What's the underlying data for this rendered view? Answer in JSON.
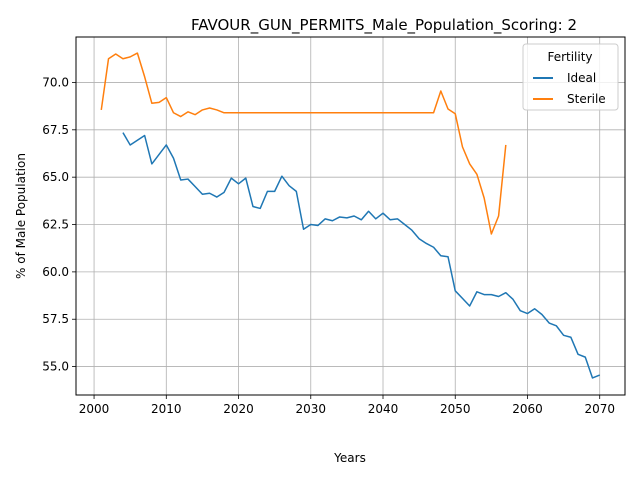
{
  "chart_data": {
    "type": "line",
    "title": "FAVOUR_GUN_PERMITS_Male_Population_Scoring: 2",
    "xlabel": "Years",
    "ylabel": "% of Male Population",
    "xlim": [
      1997.5,
      2073.5
    ],
    "ylim": [
      53.5,
      72.4
    ],
    "xticks": [
      2000,
      2010,
      2020,
      2030,
      2040,
      2050,
      2060,
      2070
    ],
    "yticks": [
      55.0,
      57.5,
      60.0,
      62.5,
      65.0,
      67.5,
      70.0
    ],
    "ytick_labels": [
      "55.0",
      "57.5",
      "60.0",
      "62.5",
      "65.0",
      "67.5",
      "70.0"
    ],
    "grid": true,
    "legend": {
      "title": "Fertility",
      "position": "top-right"
    },
    "series": [
      {
        "name": "Ideal",
        "color": "#1f77b4",
        "x": [
          2004,
          2005,
          2006,
          2007,
          2008,
          2009,
          2010,
          2011,
          2012,
          2013,
          2014,
          2015,
          2016,
          2017,
          2018,
          2019,
          2020,
          2021,
          2022,
          2023,
          2024,
          2025,
          2026,
          2027,
          2028,
          2029,
          2030,
          2031,
          2032,
          2033,
          2034,
          2035,
          2036,
          2037,
          2038,
          2039,
          2040,
          2041,
          2042,
          2043,
          2044,
          2045,
          2046,
          2047,
          2048,
          2049,
          2050,
          2051,
          2052,
          2053,
          2054,
          2055,
          2056,
          2057,
          2058,
          2059,
          2060,
          2061,
          2062,
          2063,
          2064,
          2065,
          2066,
          2067,
          2068,
          2069,
          2070
        ],
        "y": [
          67.35,
          66.7,
          66.95,
          67.2,
          65.7,
          66.2,
          66.7,
          66.0,
          64.85,
          64.9,
          64.5,
          64.1,
          64.15,
          63.95,
          64.2,
          64.95,
          64.65,
          64.95,
          63.45,
          63.35,
          64.25,
          64.25,
          65.05,
          64.55,
          64.25,
          62.25,
          62.5,
          62.45,
          62.8,
          62.7,
          62.9,
          62.85,
          62.95,
          62.75,
          63.2,
          62.8,
          63.1,
          62.75,
          62.8,
          62.5,
          62.2,
          61.75,
          61.5,
          61.3,
          60.85,
          60.8,
          59.0,
          58.6,
          58.2,
          58.95,
          58.8,
          58.8,
          58.7,
          58.9,
          58.55,
          57.95,
          57.8,
          58.05,
          57.75,
          57.3,
          57.15,
          56.65,
          56.55,
          55.65,
          55.5,
          54.4,
          54.55
        ]
      },
      {
        "name": "Sterile",
        "color": "#ff7f0e",
        "x": [
          2001,
          2002,
          2003,
          2004,
          2005,
          2006,
          2007,
          2008,
          2009,
          2010,
          2011,
          2012,
          2013,
          2014,
          2015,
          2016,
          2017,
          2018,
          2019,
          2020,
          2021,
          2022,
          2023,
          2024,
          2025,
          2026,
          2027,
          2028,
          2029,
          2030,
          2031,
          2032,
          2033,
          2034,
          2035,
          2036,
          2037,
          2038,
          2039,
          2040,
          2041,
          2042,
          2043,
          2044,
          2045,
          2046,
          2047,
          2048,
          2049,
          2050,
          2051,
          2052,
          2053,
          2054,
          2055,
          2056,
          2057
        ],
        "y": [
          68.55,
          71.25,
          71.5,
          71.25,
          71.35,
          71.55,
          70.3,
          68.9,
          68.95,
          69.2,
          68.4,
          68.2,
          68.45,
          68.3,
          68.55,
          68.65,
          68.55,
          68.4,
          68.4,
          68.4,
          68.4,
          68.4,
          68.4,
          68.4,
          68.4,
          68.4,
          68.4,
          68.4,
          68.4,
          68.4,
          68.4,
          68.4,
          68.4,
          68.4,
          68.4,
          68.4,
          68.4,
          68.4,
          68.4,
          68.4,
          68.4,
          68.4,
          68.4,
          68.4,
          68.4,
          68.4,
          68.4,
          69.55,
          68.6,
          68.35,
          66.6,
          65.7,
          65.15,
          63.9,
          62.0,
          62.95,
          66.7
        ]
      }
    ]
  }
}
